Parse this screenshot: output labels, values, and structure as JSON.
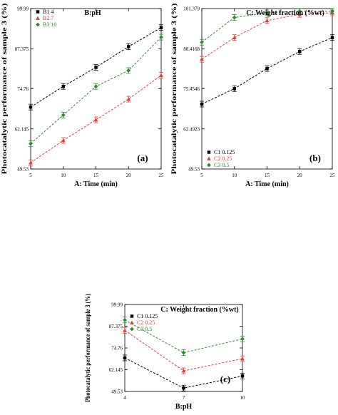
{
  "chart_data": [
    {
      "id": "a",
      "type": "line",
      "panel_label": "(a)",
      "factor_title": "B:pH",
      "xlabel": "A: Time (min)",
      "ylabel": "Photocatalytic performance of sample 3 (%)",
      "x": [
        5,
        10,
        15,
        20,
        25
      ],
      "x_ticks": [
        "5",
        "10",
        "15",
        "20",
        "25"
      ],
      "y_ticks": [
        "49.53",
        "62.145",
        "74.76",
        "87.375",
        "99.99"
      ],
      "ylim": [
        49.53,
        99.99
      ],
      "legend_position": "top-left",
      "series": [
        {
          "name": "B1 4",
          "color": "#000000",
          "marker": "square",
          "values": [
            69.0,
            75.5,
            81.5,
            88.0,
            94.0
          ]
        },
        {
          "name": "B2 7",
          "color": "#e53935",
          "marker": "triangle",
          "values": [
            51.5,
            58.5,
            65.0,
            71.5,
            79.0
          ]
        },
        {
          "name": "B3 10",
          "color": "#2e8b2e",
          "marker": "diamond",
          "values": [
            57.5,
            66.5,
            75.5,
            80.5,
            91.0
          ]
        }
      ]
    },
    {
      "id": "b",
      "type": "line",
      "panel_label": "(b)",
      "factor_title": "C: Weight fraction (%wt)",
      "xlabel": "A: Time (min)",
      "ylabel": "Photocatalytic performance of sample 3 (%)",
      "x": [
        5,
        10,
        15,
        20,
        25
      ],
      "x_ticks": [
        "5",
        "10",
        "15",
        "20",
        "25"
      ],
      "y_ticks": [
        "49.53",
        "62.4923",
        "75.4546",
        "88.4168",
        "101.379"
      ],
      "ylim": [
        49.53,
        101.379
      ],
      "legend_position": "bottom-left",
      "series": [
        {
          "name": "C1 0.125",
          "color": "#000000",
          "marker": "square",
          "values": [
            70.5,
            75.5,
            82.0,
            87.5,
            92.0
          ]
        },
        {
          "name": "C2 0.25",
          "color": "#e53935",
          "marker": "triangle",
          "values": [
            85.0,
            92.0,
            97.5,
            99.5,
            100.0
          ]
        },
        {
          "name": "C3 0.5",
          "color": "#2e8b2e",
          "marker": "diamond",
          "values": [
            90.5,
            98.5,
            100.0,
            100.5,
            100.5
          ]
        }
      ]
    },
    {
      "id": "c",
      "type": "line",
      "panel_label": "(c)",
      "factor_title": "C: Weight fraction (%wt)",
      "xlabel": "B:pH",
      "ylabel": "Photocatalytic performance of sample 3 (%)",
      "x": [
        4,
        7,
        10
      ],
      "x_ticks": [
        "4",
        "7",
        "10"
      ],
      "y_ticks": [
        "49.53",
        "62.145",
        "74.76",
        "87.375",
        "99.99"
      ],
      "ylim": [
        49.53,
        99.99
      ],
      "legend_position": "top-left",
      "series": [
        {
          "name": "C1 0.125",
          "color": "#000000",
          "marker": "square",
          "values": [
            69.0,
            51.5,
            58.5
          ]
        },
        {
          "name": "C2 0.25",
          "color": "#e53935",
          "marker": "triangle",
          "values": [
            85.0,
            61.5,
            68.5
          ]
        },
        {
          "name": "C3 0.5",
          "color": "#2e8b2e",
          "marker": "diamond",
          "values": [
            91.0,
            72.0,
            80.0
          ]
        }
      ]
    }
  ]
}
